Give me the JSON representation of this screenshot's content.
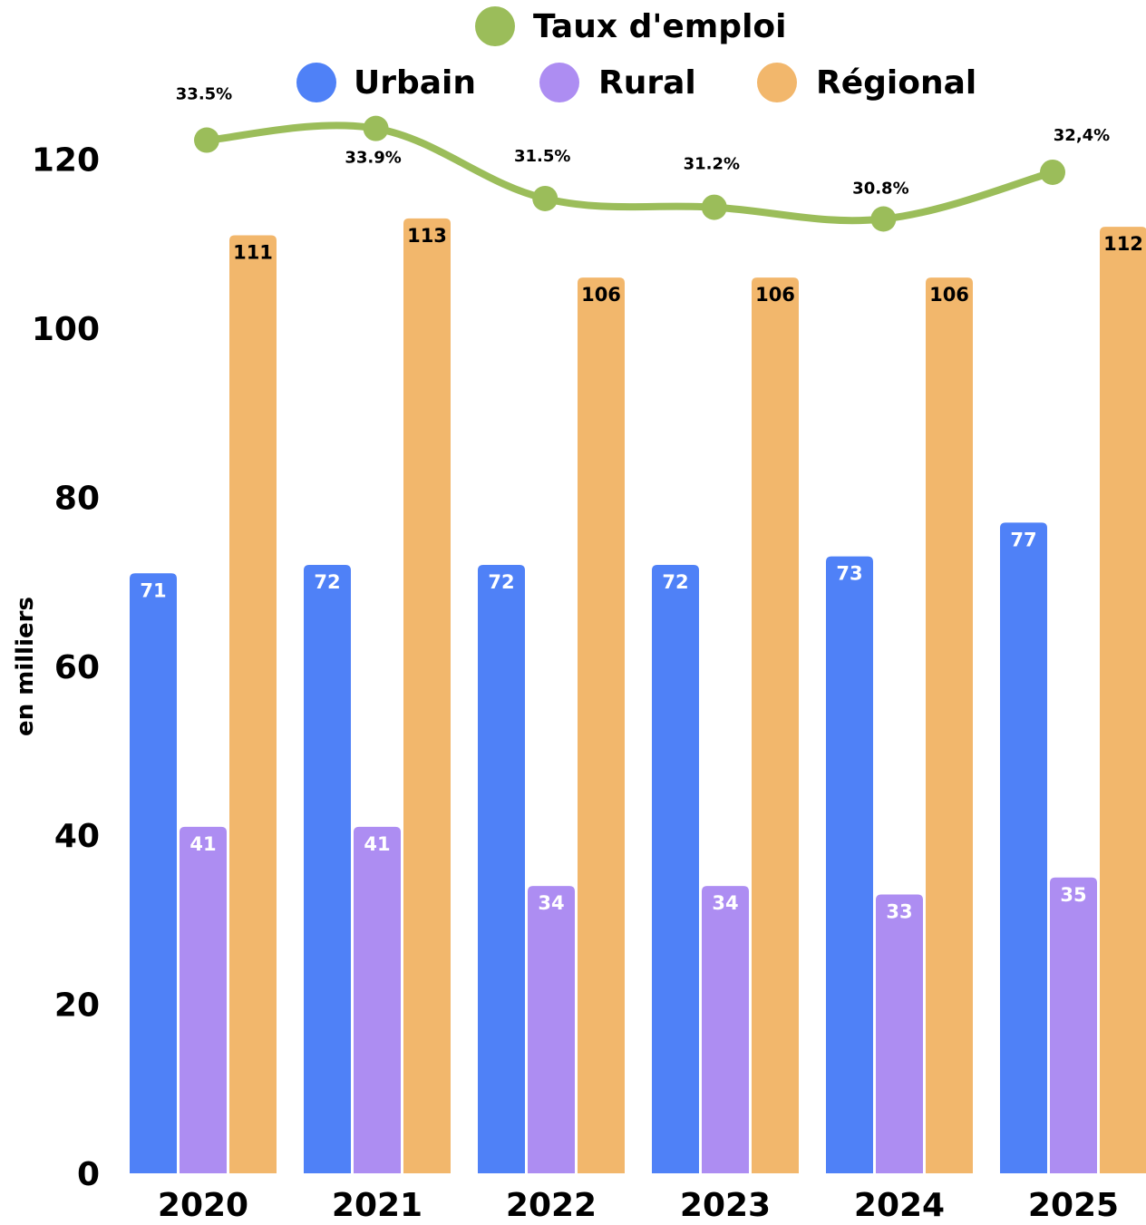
{
  "chart_data": {
    "type": "bar",
    "ylabel": "en milliers",
    "ylim": [
      0,
      120
    ],
    "yticks": [
      0,
      20,
      40,
      60,
      80,
      100,
      120
    ],
    "grid": false,
    "legend_position": "top",
    "categories": [
      "2020",
      "2021",
      "2022",
      "2023",
      "2024",
      "2025"
    ],
    "series": [
      {
        "name": "Urbain",
        "kind": "bar",
        "color": "#4f81f7",
        "values": [
          71,
          72,
          72,
          72,
          73,
          77
        ],
        "labels": [
          "71",
          "72",
          "72",
          "72",
          "73",
          "77"
        ]
      },
      {
        "name": "Rural",
        "kind": "bar",
        "color": "#ad8df2",
        "values": [
          41,
          41,
          34,
          34,
          33,
          35
        ],
        "labels": [
          "41",
          "41",
          "34",
          "34",
          "33",
          "35"
        ]
      },
      {
        "name": "Régional",
        "kind": "bar",
        "color": "#f2b76c",
        "values": [
          111,
          113,
          106,
          106,
          106,
          112
        ],
        "labels": [
          "111",
          "113",
          "106",
          "106",
          "106",
          "112"
        ]
      }
    ],
    "line_series": {
      "name": "Taux d'emploi",
      "kind": "line",
      "color": "#9bbd5a",
      "values": [
        33.5,
        33.9,
        31.5,
        31.2,
        30.8,
        32.4
      ],
      "labels": [
        "33.5%",
        "33.9%",
        "31.5%",
        "31.2%",
        "30.8%",
        "32,4%"
      ]
    }
  }
}
